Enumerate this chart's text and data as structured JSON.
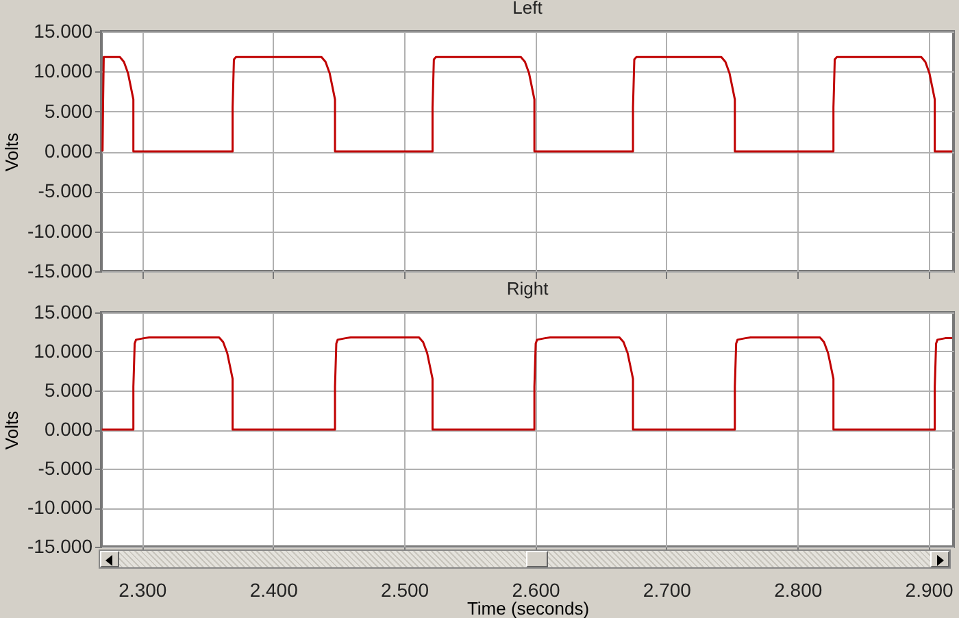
{
  "chart_data": [
    {
      "type": "line",
      "title": "Left",
      "ylabel": "Volts",
      "xlim": [
        2.269,
        2.919
      ],
      "ylim": [
        -15,
        15
      ],
      "grid": true,
      "tick_labels": "y",
      "xticks": [
        {
          "value": 2.3,
          "label": null
        },
        {
          "value": 2.4,
          "label": null
        },
        {
          "value": 2.5,
          "label": null
        },
        {
          "value": 2.6,
          "label": null
        },
        {
          "value": 2.7,
          "label": null
        },
        {
          "value": 2.8,
          "label": null
        },
        {
          "value": 2.9,
          "label": null
        }
      ],
      "yticks": [
        {
          "value": -15,
          "label": "-15.000"
        },
        {
          "value": -10,
          "label": "-10.000"
        },
        {
          "value": -5,
          "label": "-5.000"
        },
        {
          "value": 0,
          "label": "0.000"
        },
        {
          "value": 5,
          "label": "5.000"
        },
        {
          "value": 10,
          "label": "10.000"
        },
        {
          "value": 15,
          "label": "15.000"
        }
      ],
      "series": [
        {
          "color": "#c00000",
          "x": [
            2.2699,
            2.2703,
            2.2708,
            2.2831,
            2.2862,
            2.2893,
            2.2913,
            2.2934,
            2.2934,
            2.3691,
            2.3691,
            2.3701,
            2.3717,
            2.4369,
            2.44,
            2.4431,
            2.4451,
            2.4472,
            2.4472,
            2.5216,
            2.5216,
            2.5226,
            2.5242,
            2.589,
            2.5921,
            2.5952,
            2.5972,
            2.5993,
            2.5993,
            2.6745,
            2.6745,
            2.6755,
            2.6771,
            2.7419,
            2.745,
            2.7481,
            2.7501,
            2.7522,
            2.7522,
            2.8274,
            2.8274,
            2.8284,
            2.83,
            2.8944,
            2.8975,
            2.9006,
            2.9026,
            2.9047,
            2.9047,
            2.918
          ],
          "values": [
            0,
            6,
            11.8,
            11.8,
            11.2,
            9.8,
            8.2,
            6.5,
            0,
            0,
            5.5,
            11.5,
            11.8,
            11.8,
            11.2,
            9.8,
            8.2,
            6.5,
            0,
            0,
            5.5,
            11.5,
            11.8,
            11.8,
            11.2,
            9.8,
            8.2,
            6.5,
            0,
            0,
            5.5,
            11.5,
            11.8,
            11.8,
            11.2,
            9.8,
            8.2,
            6.5,
            0,
            0,
            5.5,
            11.5,
            11.8,
            11.8,
            11.2,
            9.8,
            8.2,
            6.5,
            0,
            0
          ]
        }
      ]
    },
    {
      "type": "line",
      "title": "Right",
      "ylabel": "Volts",
      "xlabel": "Time (seconds)",
      "xlim": [
        2.269,
        2.919
      ],
      "ylim": [
        -15,
        15
      ],
      "grid": true,
      "xticks": [
        {
          "value": 2.3,
          "label": "2.300"
        },
        {
          "value": 2.4,
          "label": "2.400"
        },
        {
          "value": 2.5,
          "label": "2.500"
        },
        {
          "value": 2.6,
          "label": "2.600"
        },
        {
          "value": 2.7,
          "label": "2.700"
        },
        {
          "value": 2.8,
          "label": "2.800"
        },
        {
          "value": 2.9,
          "label": "2.900"
        }
      ],
      "yticks": [
        {
          "value": -15,
          "label": "-15.000"
        },
        {
          "value": -10,
          "label": "-10.000"
        },
        {
          "value": -5,
          "label": "-5.000"
        },
        {
          "value": 0,
          "label": "0.000"
        },
        {
          "value": 5,
          "label": "5.000"
        },
        {
          "value": 10,
          "label": "10.000"
        },
        {
          "value": 15,
          "label": "15.000"
        }
      ],
      "series": [
        {
          "color": "#c00000",
          "x": [
            2.2694,
            2.2934,
            2.2934,
            2.2944,
            2.2954,
            2.3014,
            2.3054,
            2.3588,
            2.3619,
            2.365,
            2.367,
            2.3691,
            2.3691,
            2.4472,
            2.4472,
            2.4482,
            2.4492,
            2.4552,
            2.4592,
            2.5113,
            2.5144,
            2.5175,
            2.5195,
            2.5216,
            2.5216,
            2.5993,
            2.5993,
            2.6003,
            2.6013,
            2.6073,
            2.6113,
            2.6642,
            2.6673,
            2.6704,
            2.6724,
            2.6745,
            2.6745,
            2.7522,
            2.7522,
            2.7532,
            2.7542,
            2.7602,
            2.7642,
            2.8171,
            2.8202,
            2.8233,
            2.8253,
            2.8274,
            2.8274,
            2.9047,
            2.9047,
            2.9057,
            2.9067,
            2.9127,
            2.918
          ],
          "values": [
            0,
            0,
            5.5,
            11,
            11.5,
            11.7,
            11.8,
            11.8,
            11.2,
            9.8,
            8.2,
            6.5,
            0,
            0,
            5.5,
            11,
            11.5,
            11.7,
            11.8,
            11.8,
            11.2,
            9.8,
            8.2,
            6.5,
            0,
            0,
            5.5,
            11,
            11.5,
            11.7,
            11.8,
            11.8,
            11.2,
            9.8,
            8.2,
            6.5,
            0,
            0,
            5.5,
            11,
            11.5,
            11.7,
            11.8,
            11.8,
            11.2,
            9.8,
            8.2,
            6.5,
            0,
            0,
            5.5,
            11,
            11.5,
            11.7,
            11.7
          ]
        }
      ]
    }
  ]
}
